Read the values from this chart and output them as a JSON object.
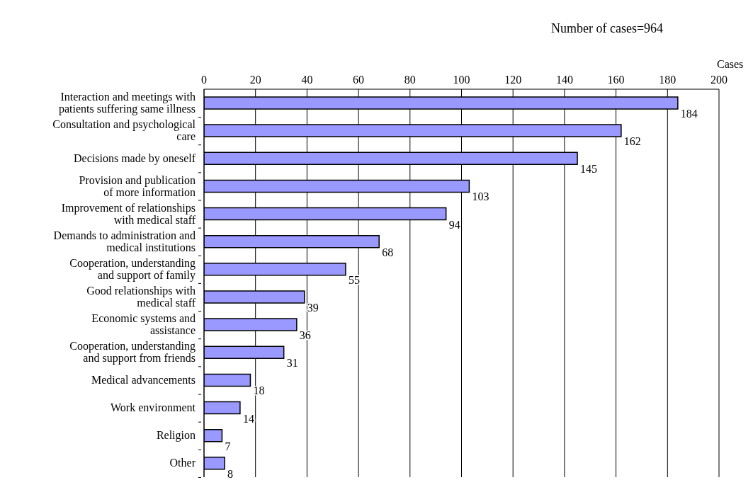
{
  "chart_data": {
    "type": "bar",
    "orientation": "horizontal",
    "title": "Number of cases=964",
    "xlabel": "Cases",
    "categories": [
      "Interaction and meetings with\npatients suffering same illness",
      "Consultation and psychological\ncare",
      "Decisions made by oneself",
      "Provision and publication\nof more information",
      "Improvement of relationships\nwith medical staff",
      "Demands to administration and\nmedical institutions",
      "Cooperation, understanding\nand support of family",
      "Good relationships with\nmedical staff",
      "Economic systems and\nassistance",
      "Cooperation, understanding\nand support from friends",
      "Medical advancements",
      "Work environment",
      "Religion",
      "Other"
    ],
    "values": [
      184,
      162,
      145,
      103,
      94,
      68,
      55,
      39,
      36,
      31,
      18,
      14,
      7,
      8
    ],
    "color": "#9999ff",
    "xlim": [
      0,
      200
    ],
    "xticks": [
      0,
      20,
      40,
      60,
      80,
      100,
      120,
      140,
      160,
      180,
      200
    ],
    "grid": "x",
    "data_labels": true,
    "legend": false
  }
}
